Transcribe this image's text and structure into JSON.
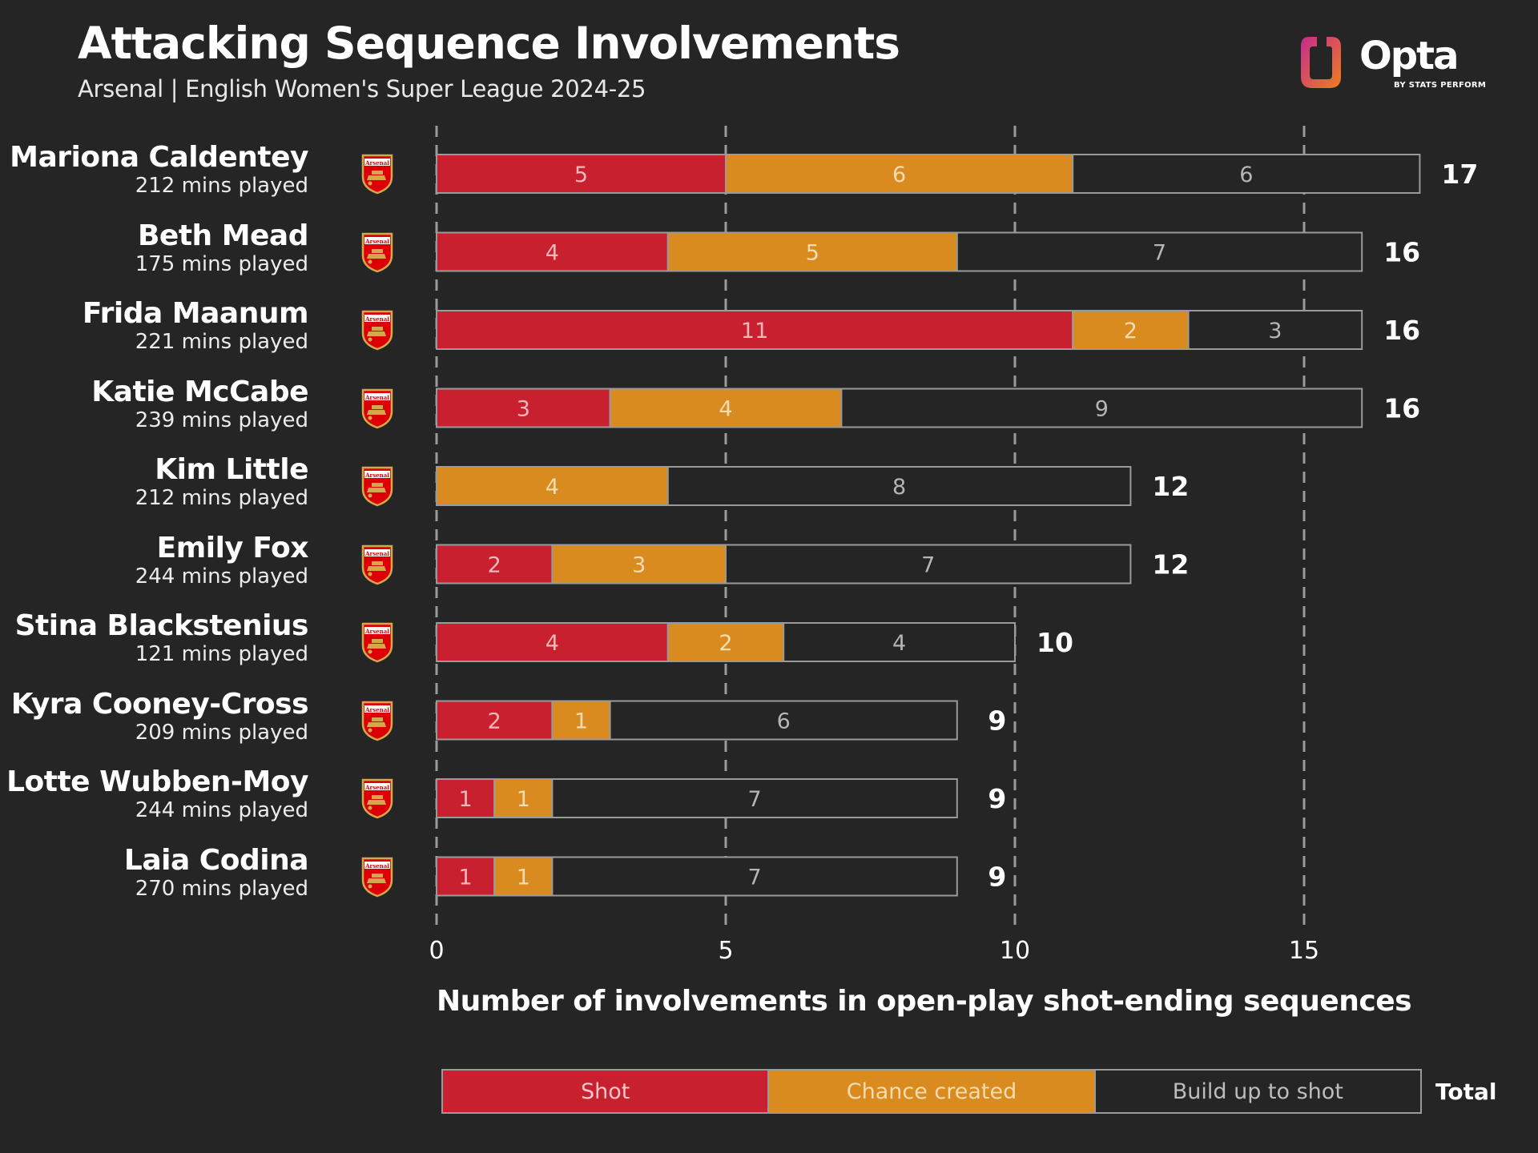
{
  "title": "Attacking Sequence Involvements",
  "subtitle": "Arsenal | English Women's Super League 2024-25",
  "logo": {
    "word": "Opta",
    "tagline": "BY STATS PERFORM",
    "icon": "opta-logo-icon",
    "colors": [
      "#c42c8d",
      "#f07d20"
    ]
  },
  "badge_text": "Arsenal",
  "colors": {
    "background": "#252525",
    "shot": "#c8202e",
    "chance_created": "#d98b1f",
    "build_up": "#252525",
    "grid": "#9a9a9a"
  },
  "chart_data": {
    "type": "bar",
    "orientation": "horizontal",
    "stacked": true,
    "title": "Attacking Sequence Involvements",
    "subtitle": "Arsenal | English Women's Super League 2024-25",
    "xlabel": "Number of involvements in open-play shot-ending sequences",
    "xlim": [
      0,
      17
    ],
    "xticks": [
      0,
      5,
      10,
      15
    ],
    "grid": "vertical dashed",
    "legend_position": "bottom",
    "categories": [
      "Mariona Caldentey",
      "Beth Mead",
      "Frida Maanum",
      "Katie McCabe",
      "Kim Little",
      "Emily Fox",
      "Stina Blackstenius",
      "Kyra Cooney-Cross",
      "Lotte Wubben-Moy",
      "Laia Codina"
    ],
    "minutes": [
      "212 mins played",
      "175 mins played",
      "221 mins played",
      "239 mins played",
      "212 mins played",
      "244 mins played",
      "121 mins played",
      "209 mins played",
      "244 mins played",
      "270 mins played"
    ],
    "series": [
      {
        "name": "Shot",
        "values": [
          5,
          4,
          11,
          3,
          0,
          2,
          4,
          2,
          1,
          1
        ]
      },
      {
        "name": "Chance created",
        "values": [
          6,
          5,
          2,
          4,
          4,
          3,
          2,
          1,
          1,
          1
        ]
      },
      {
        "name": "Build up to shot",
        "values": [
          6,
          7,
          3,
          9,
          8,
          7,
          4,
          6,
          7,
          7
        ]
      }
    ],
    "totals": [
      17,
      16,
      16,
      16,
      12,
      12,
      10,
      9,
      9,
      9
    ],
    "totals_label": "Total"
  }
}
